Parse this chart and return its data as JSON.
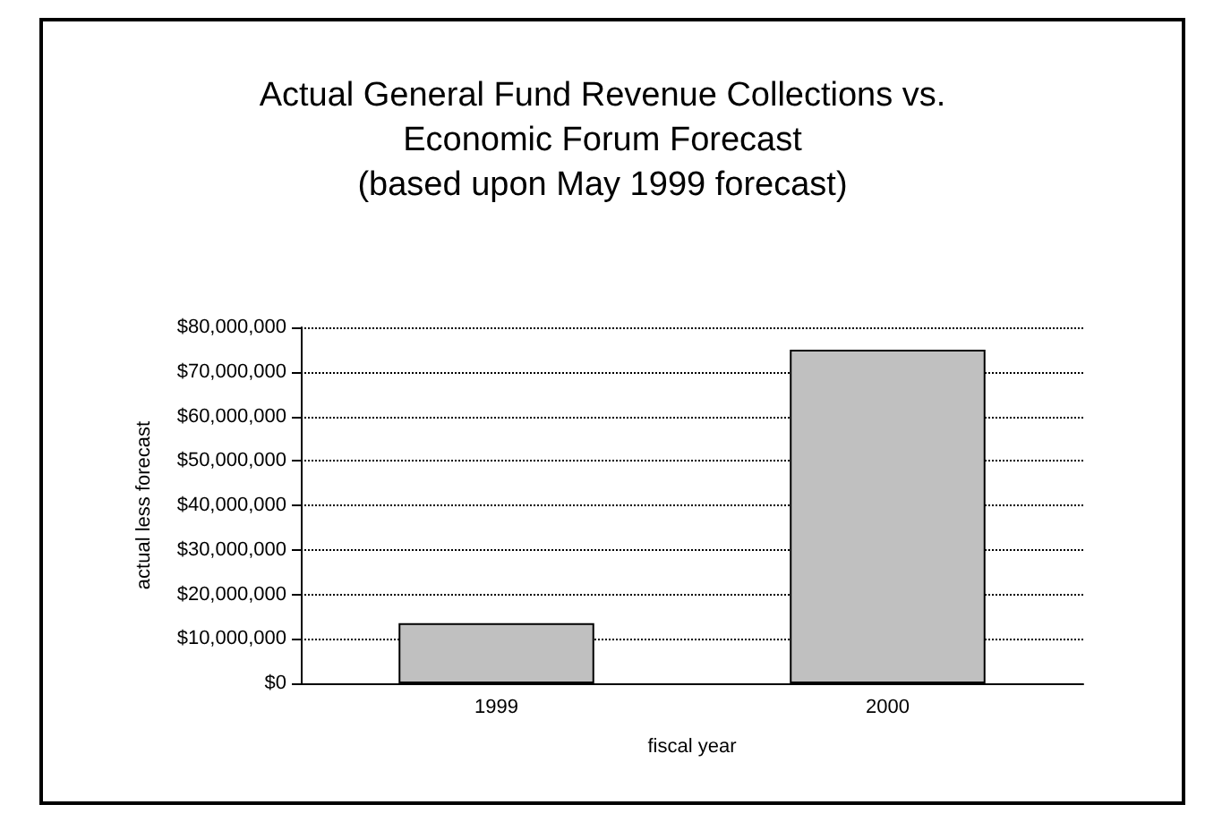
{
  "chart_data": {
    "type": "bar",
    "title": "Actual General Fund Revenue Collections vs.\nEconomic Forum Forecast\n(based upon May 1999 forecast)",
    "xlabel": "fiscal year",
    "ylabel": "actual less forecast",
    "categories": [
      "1999",
      "2000"
    ],
    "values": [
      13500000,
      75000000
    ],
    "color": "#c0c0c0",
    "ylim": [
      0,
      80000000
    ],
    "yticks": [
      {
        "value": 0,
        "label": "$0"
      },
      {
        "value": 10000000,
        "label": "$10,000,000"
      },
      {
        "value": 20000000,
        "label": "$20,000,000"
      },
      {
        "value": 30000000,
        "label": "$30,000,000"
      },
      {
        "value": 40000000,
        "label": "$40,000,000"
      },
      {
        "value": 50000000,
        "label": "$50,000,000"
      },
      {
        "value": 60000000,
        "label": "$60,000,000"
      },
      {
        "value": 70000000,
        "label": "$70,000,000"
      },
      {
        "value": 80000000,
        "label": "$80,000,000"
      }
    ],
    "grid": "y"
  }
}
